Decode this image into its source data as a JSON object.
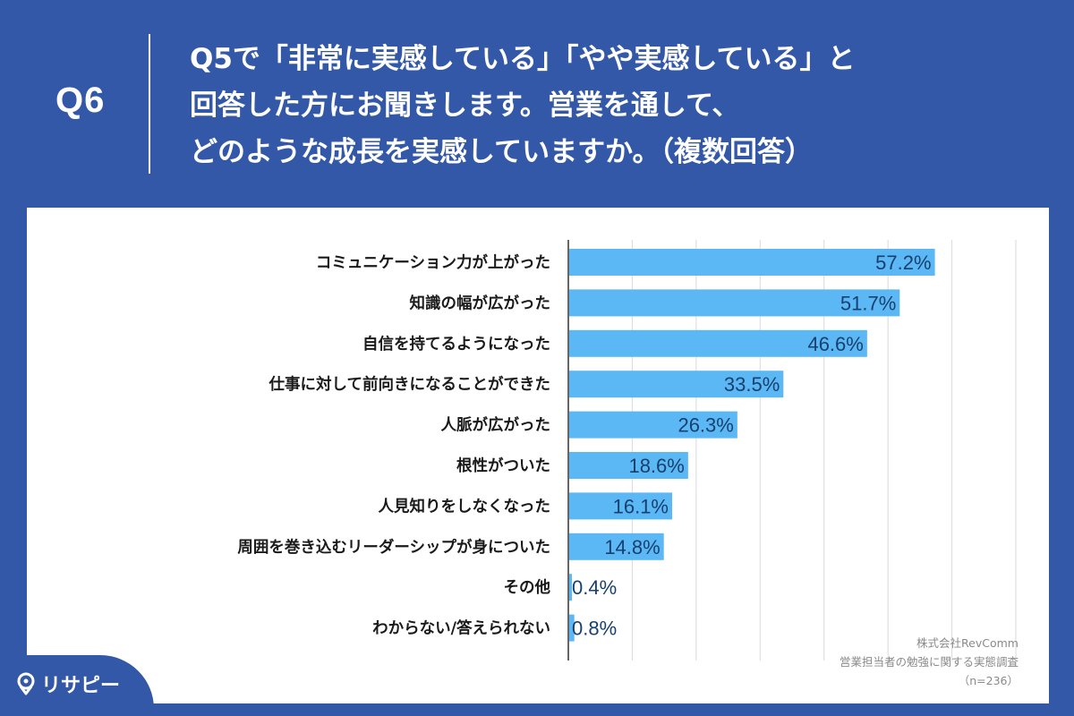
{
  "header": {
    "question_number": "Q6",
    "title_lines": [
      "Q5で「非常に実感している」「やや実感している」と",
      "回答した方にお聞きします。営業を通して、",
      "どのような成長を実感していますか。（複数回答）"
    ]
  },
  "source": {
    "company": "株式会社RevComm",
    "survey": "営業担当者の勉強に関する実態調査",
    "sample": "（n=236）"
  },
  "logo": {
    "text": "リサピー",
    "icon": "location-pin-icon"
  },
  "colors": {
    "background": "#3358a8",
    "bar": "#5bb8f5",
    "value_label": "#17406e",
    "grid": "#d9d9d9"
  },
  "chart_data": {
    "type": "bar",
    "orientation": "horizontal",
    "categories": [
      "コミュニケーション力が上がった",
      "知識の幅が広がった",
      "自信を持てるようになった",
      "仕事に対して前向きになることができた",
      "人脈が広がった",
      "根性がついた",
      "人見知りをしなくなった",
      "周囲を巻き込むリーダーシップが身についた",
      "その他",
      "わからない/答えられない"
    ],
    "values": [
      57.2,
      51.7,
      46.6,
      33.5,
      26.3,
      18.6,
      16.1,
      14.8,
      0.4,
      0.8
    ],
    "value_labels": [
      "57.2%",
      "51.7%",
      "46.6%",
      "33.5%",
      "26.3%",
      "18.6%",
      "16.1%",
      "14.8%",
      "0.4%",
      "0.8%"
    ],
    "xlim": [
      0,
      70
    ],
    "grid": true,
    "title": "",
    "xlabel": "",
    "ylabel": ""
  }
}
